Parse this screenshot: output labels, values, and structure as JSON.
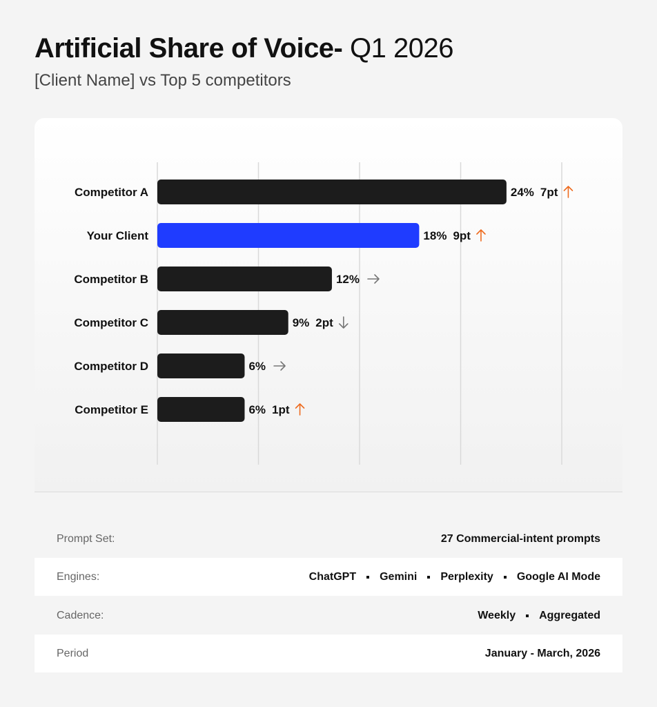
{
  "header": {
    "title_main": "Artificial Share of Voice-",
    "title_period": "Q1 2026",
    "subtitle": "[Client Name] vs Top 5 competitors"
  },
  "colors": {
    "default_bar": "#1c1c1c",
    "highlight_bar": "#1f3cff",
    "up_arrow": "#ee6b1f",
    "neutral_arrow": "#777777",
    "down_arrow": "#777777"
  },
  "chart_data": {
    "type": "bar",
    "orientation": "horizontal",
    "categories": [
      "Competitor A",
      "Your Client",
      "Competitor B",
      "Competitor C",
      "Competitor D",
      "Competitor E"
    ],
    "values": [
      24,
      18,
      12,
      9,
      6,
      6
    ],
    "value_labels": [
      "24%",
      "18%",
      "12%",
      "9%",
      "6%",
      "6%"
    ],
    "change_labels": [
      "7pt",
      "9pt",
      "",
      "2pt",
      "",
      "1pt"
    ],
    "trend": [
      "up",
      "up",
      "flat",
      "down",
      "flat",
      "up"
    ],
    "highlight_index": 1,
    "xlim": [
      0,
      27.8
    ],
    "vertical_gridlines": 5,
    "grid": true,
    "legend": "none"
  },
  "meta": {
    "rows": [
      {
        "label": "Prompt Set:",
        "values": [
          "27 Commercial-intent prompts"
        ]
      },
      {
        "label": "Engines:",
        "values": [
          "ChatGPT",
          "Gemini",
          "Perplexity",
          "Google AI Mode"
        ]
      },
      {
        "label": "Cadence:",
        "values": [
          "Weekly",
          "Aggregated"
        ]
      },
      {
        "label": "Period",
        "values": [
          "January - March, 2026"
        ]
      }
    ]
  }
}
